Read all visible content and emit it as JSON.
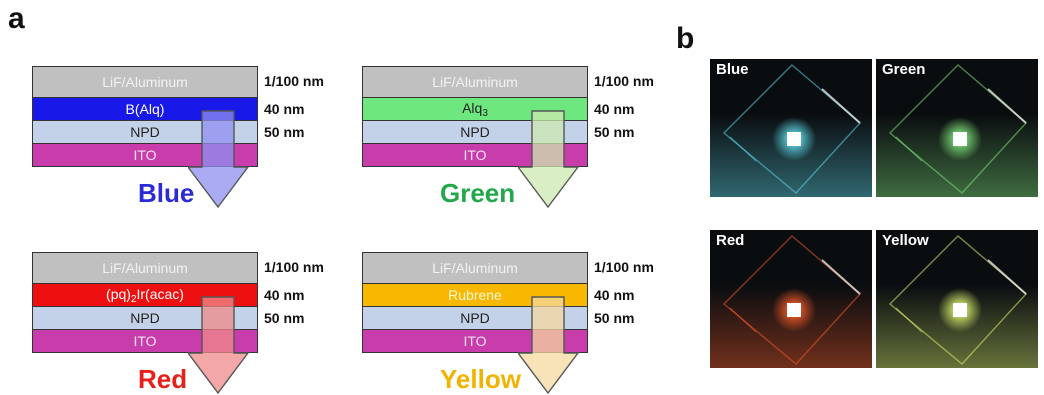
{
  "panel_a": {
    "letter": "a",
    "devices": [
      {
        "id": "blue",
        "label": "Blue",
        "label_color": "#2a2ad6",
        "layers": [
          {
            "name": "LiF/Aluminum",
            "color": "#c0c0c0",
            "text_color": "#f2f2f2",
            "thickness": "1/100 nm"
          },
          {
            "name": "B(Alq)",
            "color": "#1818e8",
            "text_color": "#ffffff",
            "thickness": "40 nm"
          },
          {
            "name": "NPD",
            "color": "#c3d2e8",
            "text_color": "#222222",
            "thickness": "50 nm"
          },
          {
            "name": "ITO",
            "color": "#c83cac",
            "text_color": "#f3e0ef",
            "thickness": ""
          }
        ],
        "arrow_color": "#8f8ff0"
      },
      {
        "id": "green",
        "label": "Green",
        "label_color": "#22a84a",
        "layers": [
          {
            "name": "Alq",
            "subscript": "3",
            "color": "#6ee87e",
            "text_color": "#222222",
            "thickness": "40 nm"
          }
        ],
        "arrow_color": "#cde8b0"
      },
      {
        "id": "red",
        "label": "Red",
        "label_color": "#e8201a",
        "layers": [
          {
            "name": "(pq)",
            "subscript": "2",
            "name_rest": "Ir(acac)",
            "color": "#ee1010",
            "text_color": "#ffffff",
            "thickness": "40 nm"
          }
        ],
        "arrow_color": "#f08a8a"
      },
      {
        "id": "yellow",
        "label": "Yellow",
        "label_color": "#f0b400",
        "layers": [
          {
            "name": "Rubrene",
            "color": "#f8b800",
            "text_color": "#fff6d8",
            "thickness": "40 nm"
          }
        ],
        "arrow_color": "#f6d8a0"
      }
    ],
    "common": {
      "top_layer": "LiF/Aluminum",
      "top_thickness": "1/100 nm",
      "npd": "NPD",
      "npd_thickness": "50 nm",
      "ito": "ITO"
    }
  },
  "panel_b": {
    "letter": "b",
    "photos": [
      {
        "label": "Blue",
        "glow": "#5fd6e6"
      },
      {
        "label": "Green",
        "glow": "#7fe07a"
      },
      {
        "label": "Red",
        "glow": "#f05a2a"
      },
      {
        "label": "Yellow",
        "glow": "#d8f070"
      }
    ]
  }
}
